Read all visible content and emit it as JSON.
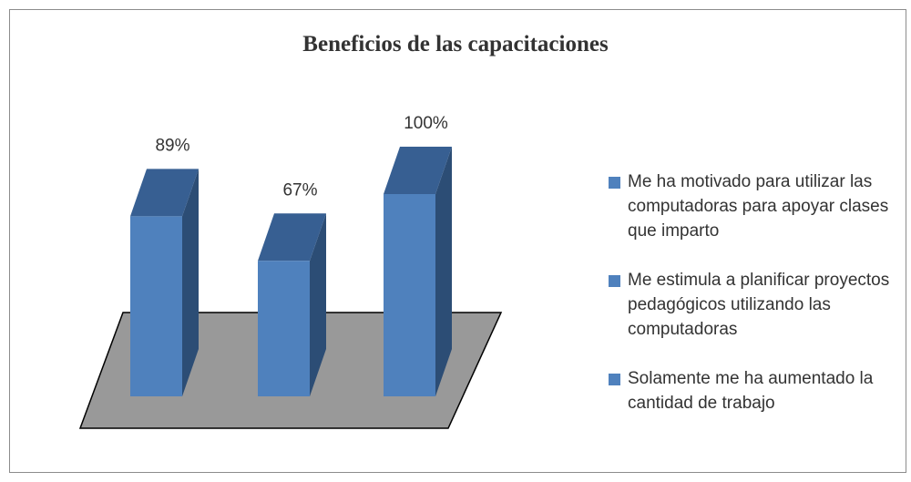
{
  "chart_data": {
    "type": "bar",
    "title": "Beneficios de las capacitaciones",
    "categories": [
      "Me ha motivado  para utilizar las computadoras para apoyar clases que imparto",
      "Me estimula  a planificar proyectos pedagógicos utilizando las computadoras",
      "Solamente me ha aumentado la cantidad de trabajo"
    ],
    "values": [
      89,
      67,
      100
    ],
    "value_labels": [
      "89%",
      "67%",
      "100%"
    ],
    "color": "#4f81bd"
  }
}
